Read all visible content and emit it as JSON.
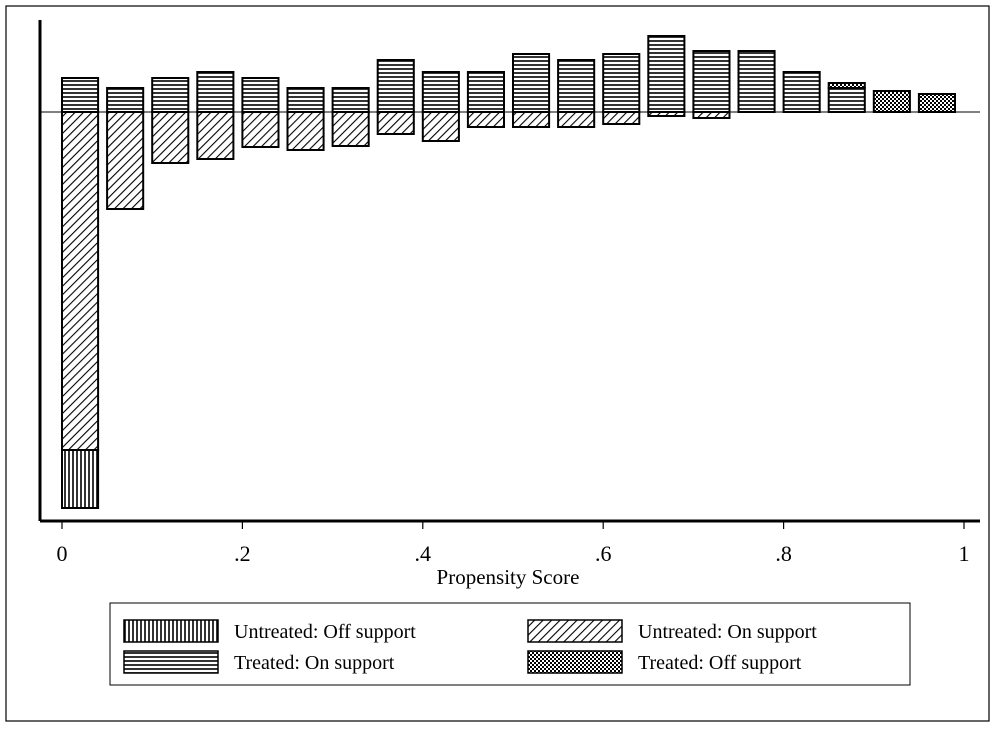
{
  "chart_data": {
    "type": "bar",
    "xlabel": "Propensity Score",
    "ylabel": "",
    "xlim": [
      0,
      1
    ],
    "xticks": [
      0,
      0.2,
      0.4,
      0.6,
      0.8,
      1
    ],
    "xtick_labels": [
      "0",
      ".2",
      ".4",
      ".6",
      ".8",
      "1"
    ],
    "bin_width": 0.04,
    "bins": [
      0.02,
      0.07,
      0.12,
      0.17,
      0.22,
      0.27,
      0.32,
      0.37,
      0.42,
      0.47,
      0.52,
      0.57,
      0.62,
      0.67,
      0.72,
      0.77,
      0.82,
      0.87,
      0.92,
      0.97
    ],
    "layout": "mirrored: treated above zero line, untreated below",
    "series": [
      {
        "name": "Treated: On support",
        "key": "treated_on",
        "pattern": "horizontal-lines",
        "direction": "up",
        "values": [
          34,
          24,
          34,
          40,
          34,
          24,
          24,
          52,
          40,
          40,
          58,
          52,
          58,
          76,
          61,
          61,
          40,
          24,
          0,
          0
        ]
      },
      {
        "name": "Treated: Off support",
        "key": "treated_off",
        "pattern": "checkerboard",
        "direction": "up",
        "values": [
          0,
          0,
          0,
          0,
          0,
          0,
          0,
          0,
          0,
          0,
          0,
          0,
          0,
          0,
          0,
          0,
          0,
          5,
          21,
          18
        ]
      },
      {
        "name": "Untreated: On support",
        "key": "untreated_on",
        "pattern": "diagonal-lines",
        "direction": "down",
        "values": [
          338,
          97,
          51,
          47,
          35,
          38,
          34,
          22,
          29,
          15,
          15,
          15,
          12,
          4,
          6,
          0,
          0,
          0,
          0,
          0
        ]
      },
      {
        "name": "Untreated: Off support",
        "key": "untreated_off",
        "pattern": "vertical-lines",
        "direction": "down",
        "values": [
          58,
          0,
          0,
          0,
          0,
          0,
          0,
          0,
          0,
          0,
          0,
          0,
          0,
          0,
          0,
          0,
          0,
          0,
          0,
          0
        ]
      }
    ],
    "grid": false,
    "legend_position": "bottom",
    "legend": {
      "items": [
        {
          "label": "Untreated: Off support",
          "pattern": "vertical-lines"
        },
        {
          "label": "Untreated: On support",
          "pattern": "diagonal-lines"
        },
        {
          "label": "Treated: On support",
          "pattern": "horizontal-lines"
        },
        {
          "label": "Treated: Off support",
          "pattern": "checkerboard"
        }
      ]
    }
  }
}
